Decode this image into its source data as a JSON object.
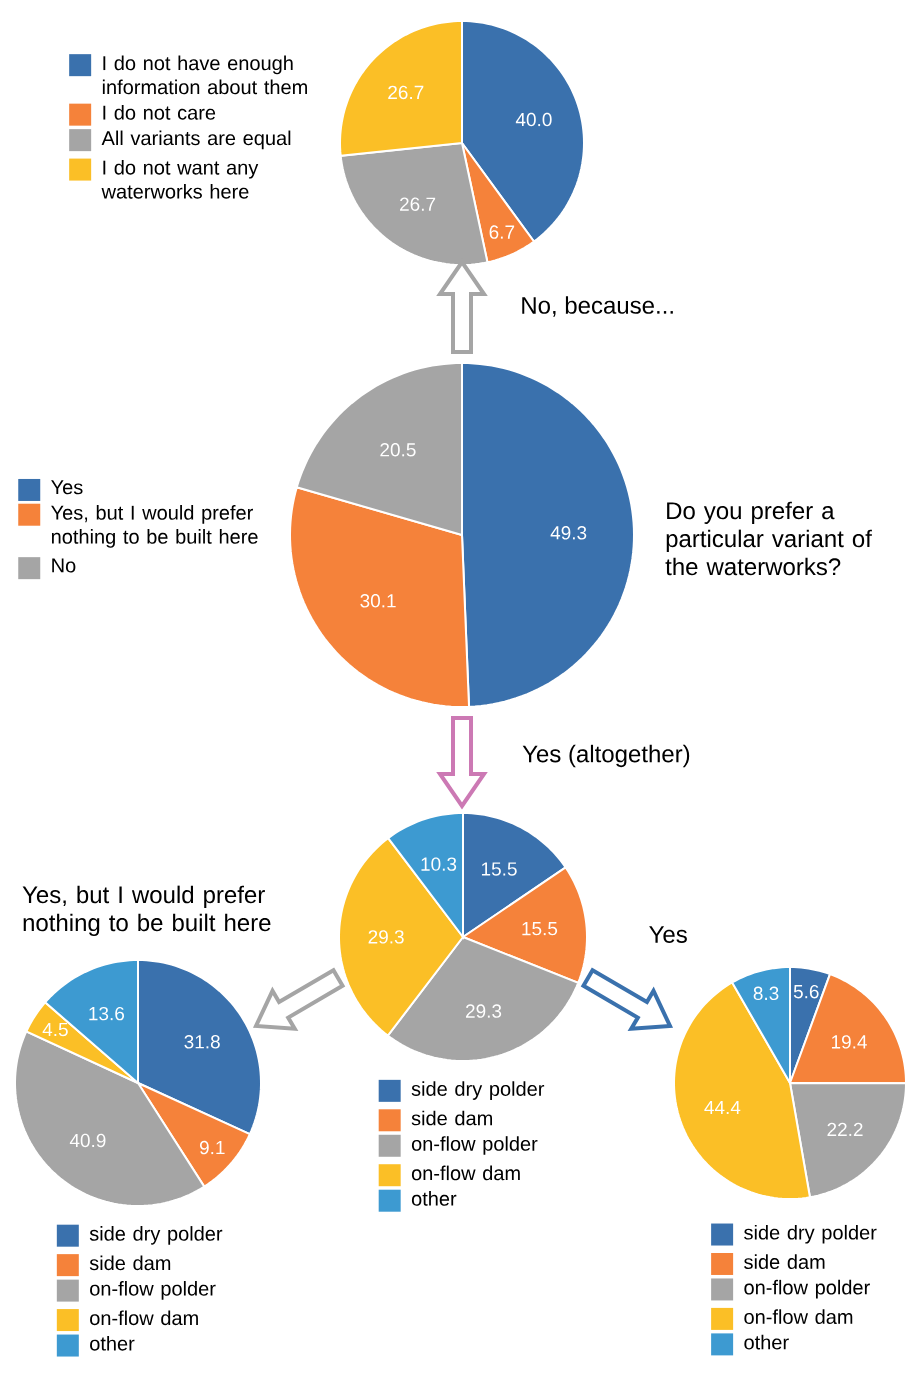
{
  "chart_data": [
    {
      "type": "pie",
      "title": "No, because...",
      "categories": [
        "I do not have enough information about them",
        "I do not care",
        "All variants are equal",
        "I do not want any waterworks here"
      ],
      "values": [
        40.0,
        6.7,
        26.7,
        26.7
      ],
      "value_labels": [
        "40.0",
        "6.7",
        "26.7",
        "26.7"
      ],
      "colors": [
        "#3a71ad",
        "#f5823a",
        "#a5a5a5",
        "#fbbf26"
      ],
      "legend": "left"
    },
    {
      "type": "pie",
      "title": "Do you prefer a particular variant of the waterworks?",
      "categories": [
        "Yes",
        "Yes, but I would prefer nothing to be built here",
        "No"
      ],
      "values": [
        49.3,
        30.1,
        20.5
      ],
      "colors": [
        "#3a71ad",
        "#f5823a",
        "#a5a5a5"
      ],
      "data_labels": true,
      "legend": "left"
    },
    {
      "type": "pie",
      "title": "Yes (altogether)",
      "categories": [
        "side dry polder",
        "side dam",
        "on-flow polder",
        "on-flow dam",
        "other"
      ],
      "values": [
        15.5,
        15.5,
        29.3,
        29.3,
        10.3
      ],
      "colors": [
        "#3a71ad",
        "#f5823a",
        "#a5a5a5",
        "#fbbf26",
        "#3d9ad1"
      ],
      "data_labels": true,
      "legend": "bottom"
    },
    {
      "type": "pie",
      "title": "Yes, but I would prefer nothing to be built here",
      "categories": [
        "side dry polder",
        "side dam",
        "on-flow polder",
        "on-flow dam",
        "other"
      ],
      "values": [
        31.8,
        9.1,
        40.9,
        4.5,
        13.6
      ],
      "colors": [
        "#3a71ad",
        "#f5823a",
        "#a5a5a5",
        "#fbbf26",
        "#3d9ad1"
      ],
      "data_labels": true,
      "legend": "bottom"
    },
    {
      "type": "pie",
      "title": "Yes",
      "categories": [
        "side dry polder",
        "side dam",
        "on-flow polder",
        "on-flow dam",
        "other"
      ],
      "values": [
        5.6,
        19.4,
        22.2,
        44.4,
        8.3
      ],
      "colors": [
        "#3a71ad",
        "#f5823a",
        "#a5a5a5",
        "#fbbf26",
        "#3d9ad1"
      ],
      "data_labels": true,
      "legend": "bottom"
    }
  ]
}
